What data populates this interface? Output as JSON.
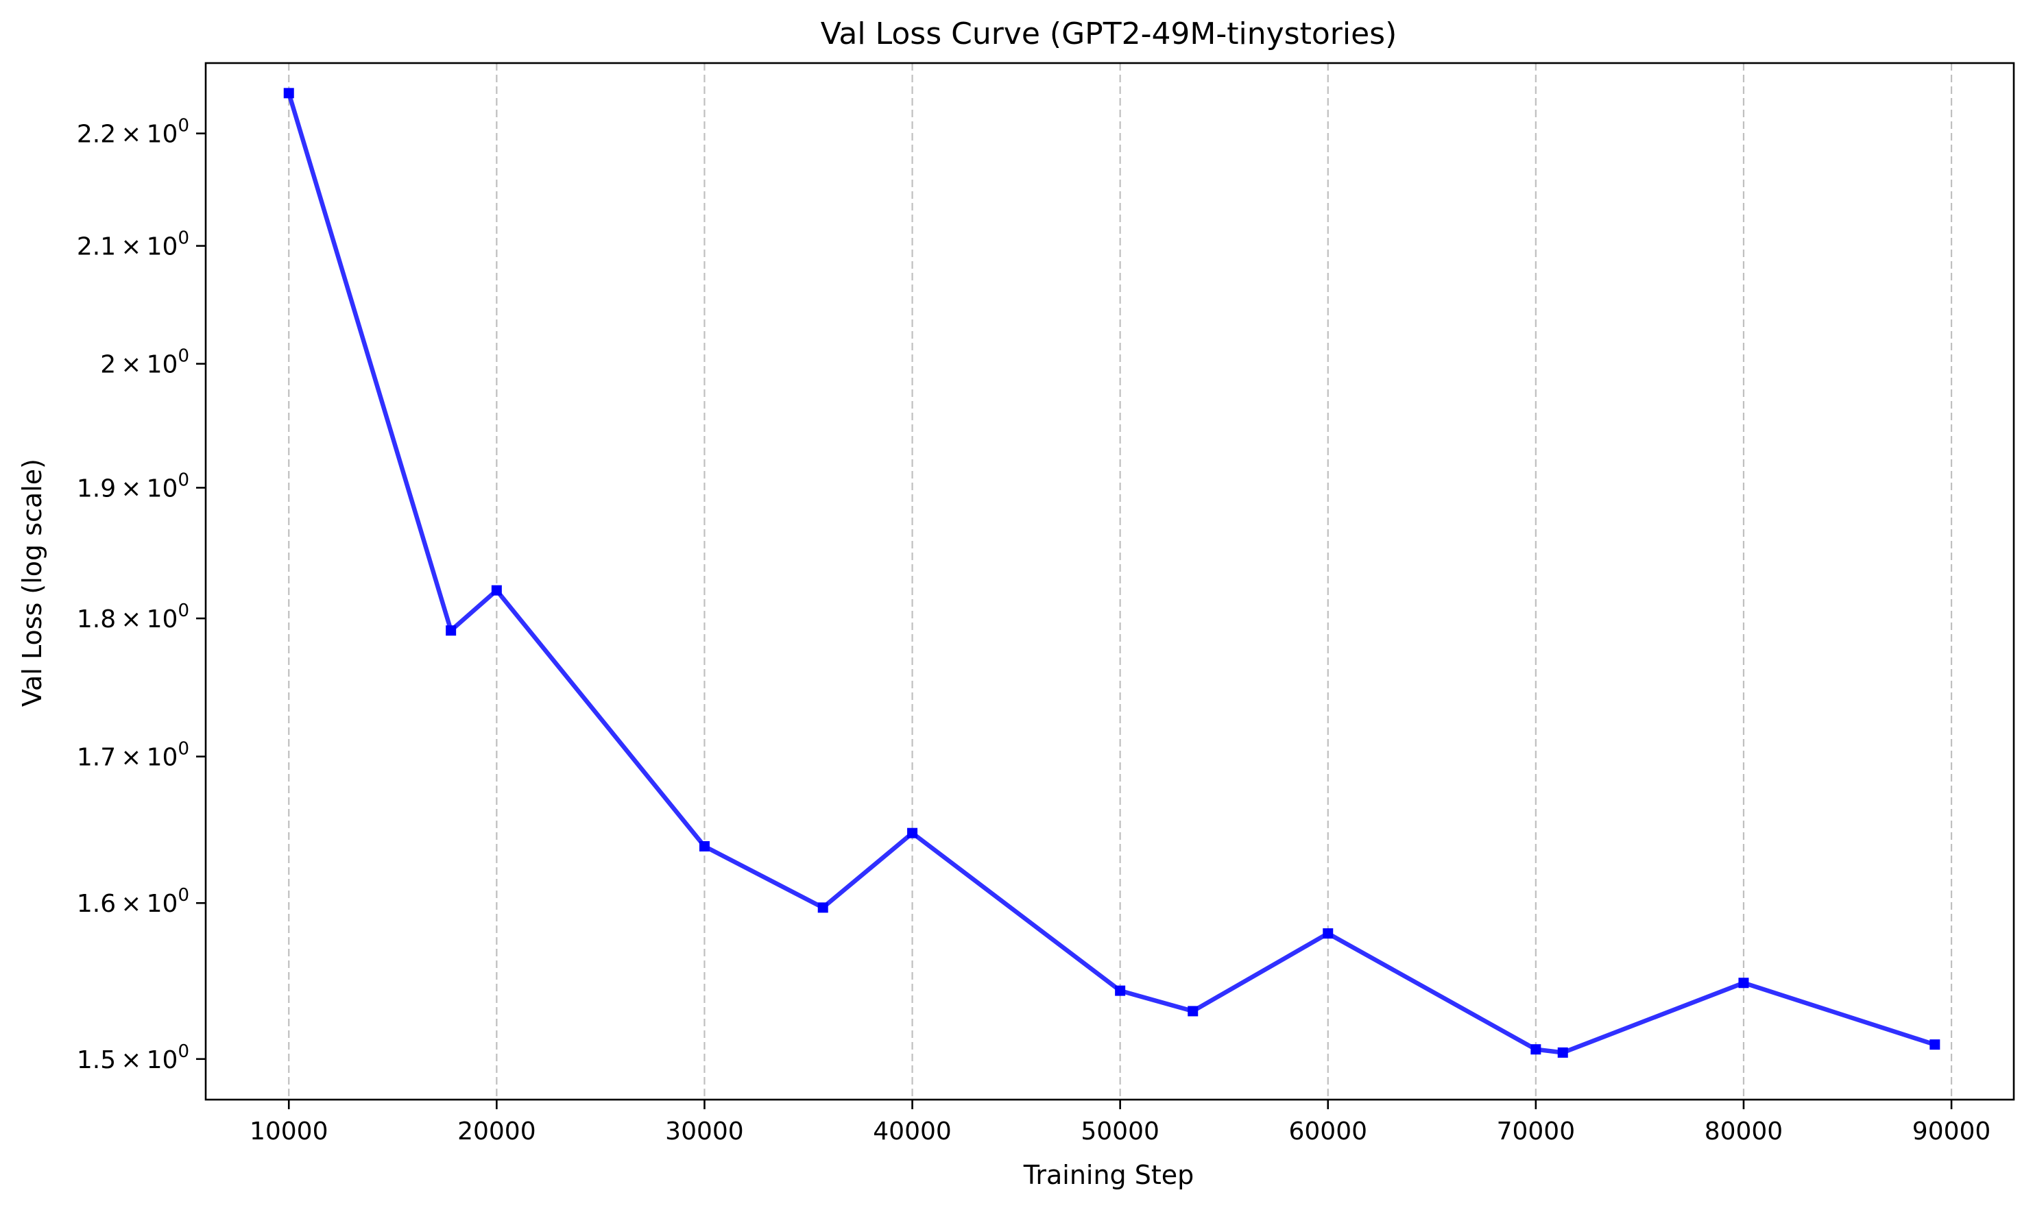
{
  "chart_data": {
    "type": "line",
    "title": "Val Loss Curve (GPT2-49M-tinystories)",
    "xlabel": "Training Step",
    "ylabel": "Val Loss (log scale)",
    "yscale": "log",
    "xlim": [
      6000,
      93000
    ],
    "ylim": [
      1.475,
      2.265
    ],
    "grid": "x-only, dashed",
    "color": "#1a1aff",
    "marker": "square",
    "x_ticks": [
      {
        "value": 10000,
        "label": "10000"
      },
      {
        "value": 20000,
        "label": "20000"
      },
      {
        "value": 30000,
        "label": "30000"
      },
      {
        "value": 40000,
        "label": "40000"
      },
      {
        "value": 50000,
        "label": "50000"
      },
      {
        "value": 60000,
        "label": "60000"
      },
      {
        "value": 70000,
        "label": "70000"
      },
      {
        "value": 80000,
        "label": "80000"
      },
      {
        "value": 90000,
        "label": "90000"
      }
    ],
    "y_ticks": [
      {
        "value": 1.5,
        "label": "1.5",
        "times": "×",
        "base": "10",
        "exp": "0"
      },
      {
        "value": 1.6,
        "label": "1.6",
        "times": "×",
        "base": "10",
        "exp": "0"
      },
      {
        "value": 1.7,
        "label": "1.7",
        "times": "×",
        "base": "10",
        "exp": "0"
      },
      {
        "value": 1.8,
        "label": "1.8",
        "times": "×",
        "base": "10",
        "exp": "0"
      },
      {
        "value": 1.9,
        "label": "1.9",
        "times": "×",
        "base": "10",
        "exp": "0"
      },
      {
        "value": 2.0,
        "label": "2",
        "times": "×",
        "base": "10",
        "exp": "0"
      },
      {
        "value": 2.1,
        "label": "2.1",
        "times": "×",
        "base": "10",
        "exp": "0"
      },
      {
        "value": 2.2,
        "label": "2.2",
        "times": "×",
        "base": "10",
        "exp": "0"
      }
    ],
    "series": [
      {
        "x": [
          10000,
          17800,
          20000,
          30000,
          35700,
          40000,
          50000,
          53500,
          60000,
          70000,
          71300,
          80000,
          89200
        ],
        "values": [
          2.237,
          1.791,
          1.821,
          1.638,
          1.597,
          1.647,
          1.543,
          1.53,
          1.58,
          1.506,
          1.504,
          1.548,
          1.509
        ]
      }
    ]
  }
}
